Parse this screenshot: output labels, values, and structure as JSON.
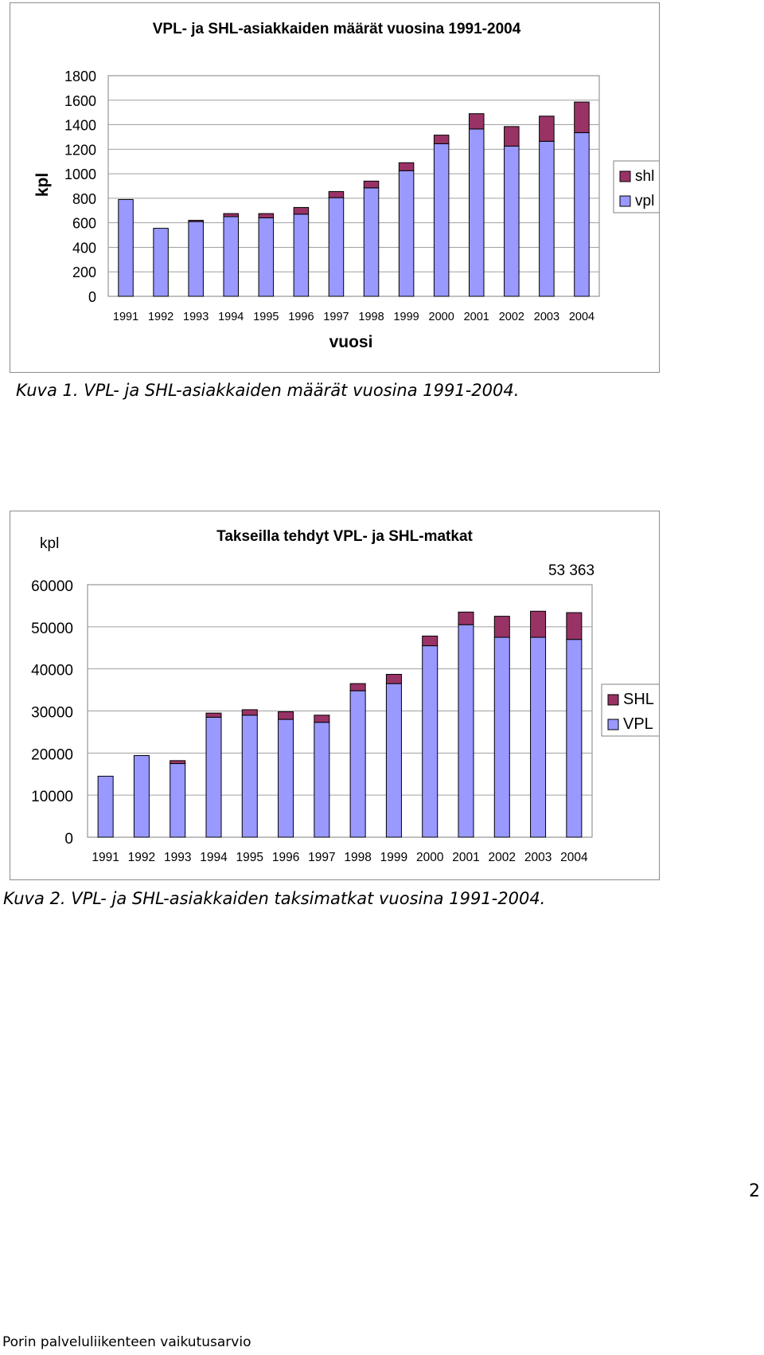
{
  "chart_data": [
    {
      "type": "bar",
      "stacked": true,
      "title": "VPL- ja SHL-asiakkaiden määrät vuosina 1991-2004",
      "xlabel": "vuosi",
      "ylabel": "kpl",
      "categories": [
        "1991",
        "1992",
        "1993",
        "1994",
        "1995",
        "1996",
        "1997",
        "1998",
        "1999",
        "2000",
        "2001",
        "2002",
        "2003",
        "2004"
      ],
      "series": [
        {
          "name": "vpl",
          "color": "#9999ff",
          "values": [
            790,
            555,
            610,
            650,
            640,
            670,
            805,
            885,
            1025,
            1245,
            1365,
            1225,
            1265,
            1335
          ]
        },
        {
          "name": "shl",
          "color": "#993366",
          "values": [
            0,
            0,
            10,
            25,
            35,
            55,
            50,
            55,
            65,
            70,
            125,
            160,
            205,
            250
          ]
        }
      ],
      "ylim": [
        0,
        1800
      ],
      "yticks": [
        0,
        200,
        400,
        600,
        800,
        1000,
        1200,
        1400,
        1600,
        1800
      ],
      "grid": true,
      "legend": "right",
      "legend_order": [
        "shl",
        "vpl"
      ]
    },
    {
      "type": "bar",
      "stacked": true,
      "title": "Takseilla tehdyt VPL- ja SHL-matkat",
      "ylabel": "kpl",
      "annotation": "53 363",
      "categories": [
        "1991",
        "1992",
        "1993",
        "1994",
        "1995",
        "1996",
        "1997",
        "1998",
        "1999",
        "2000",
        "2001",
        "2002",
        "2003",
        "2004"
      ],
      "series": [
        {
          "name": "VPL",
          "color": "#9999ff",
          "values": [
            14500,
            19400,
            17500,
            28500,
            29000,
            28000,
            27300,
            34800,
            36500,
            45500,
            50500,
            47500,
            47500,
            47000
          ]
        },
        {
          "name": "SHL",
          "color": "#993366",
          "values": [
            0,
            0,
            700,
            1000,
            1300,
            1800,
            1700,
            1700,
            2200,
            2300,
            3000,
            5000,
            6200,
            6363
          ]
        }
      ],
      "ylim": [
        0,
        60000
      ],
      "yticks": [
        0,
        10000,
        20000,
        30000,
        40000,
        50000,
        60000
      ],
      "grid": true,
      "legend": "right",
      "legend_order": [
        "SHL",
        "VPL"
      ]
    }
  ],
  "captions": {
    "figure1": "Kuva 1. VPL- ja SHL-asiakkaiden määrät vuosina 1991-2004.",
    "figure2": "Kuva 2. VPL- ja SHL-asiakkaiden taksimatkat vuosina 1991-2004."
  },
  "page_number": "2",
  "footer": "Porin palveluliikenteen vaikutusarvio"
}
